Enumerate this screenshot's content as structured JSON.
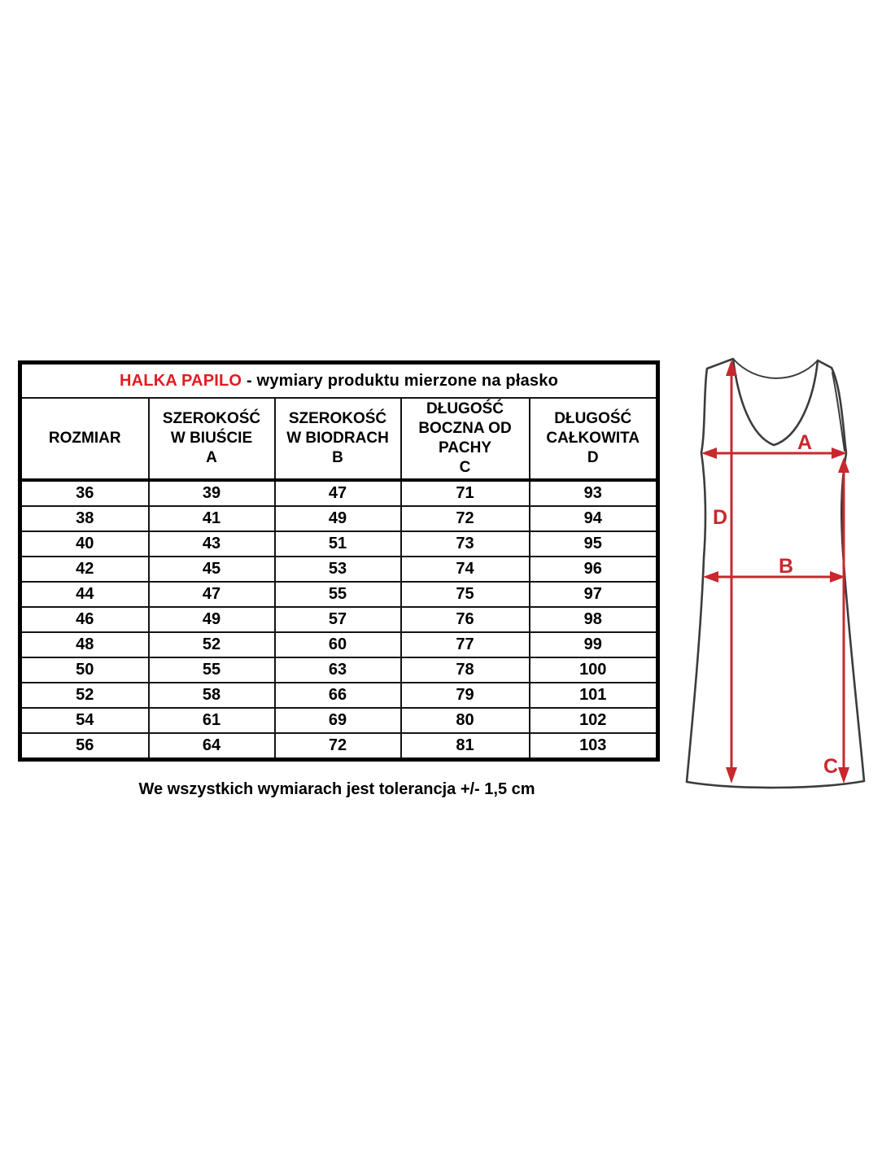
{
  "document": {
    "background": "#ffffff"
  },
  "size_table": {
    "title_brand": "HALKA PAPILO",
    "title_rest": " - wymiary produktu mierzone na płasko",
    "columns": [
      "ROZMIAR",
      "SZEROKOŚĆ\nW BIUŚCIE\nA",
      "SZEROKOŚĆ\nW BIODRACH\nB",
      "DŁUGOŚĆ\nBOCZNA OD\nPACHY\nC",
      "DŁUGOŚĆ\nCAŁKOWITA\nD"
    ],
    "rows": [
      [
        "36",
        "39",
        "47",
        "71",
        "93"
      ],
      [
        "38",
        "41",
        "49",
        "72",
        "94"
      ],
      [
        "40",
        "43",
        "51",
        "73",
        "95"
      ],
      [
        "42",
        "45",
        "53",
        "74",
        "96"
      ],
      [
        "44",
        "47",
        "55",
        "75",
        "97"
      ],
      [
        "46",
        "49",
        "57",
        "76",
        "98"
      ],
      [
        "48",
        "52",
        "60",
        "77",
        "99"
      ],
      [
        "50",
        "55",
        "63",
        "78",
        "100"
      ],
      [
        "52",
        "58",
        "66",
        "79",
        "101"
      ],
      [
        "54",
        "61",
        "69",
        "80",
        "102"
      ],
      [
        "56",
        "64",
        "72",
        "81",
        "103"
      ]
    ],
    "footnote": "We wszystkich wymiarach jest tolerancja +/- 1,5 cm"
  },
  "diagram": {
    "labels": {
      "A": "A",
      "B": "B",
      "C": "C",
      "D": "D"
    },
    "arrow_color": "#c9282d",
    "outline_color": "#3c3c3c"
  },
  "colors": {
    "brand_red": "#e21b22",
    "text_black": "#000000"
  }
}
